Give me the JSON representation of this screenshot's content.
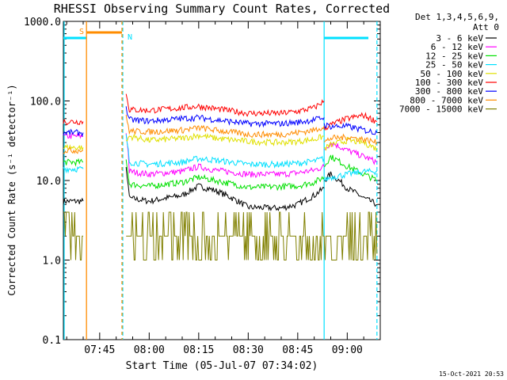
{
  "chart_data": {
    "type": "line",
    "title": "RHESSI Observing Summary Count Rates, Corrected",
    "xlabel": "Start Time (05-Jul-07 07:34:02)",
    "ylabel": "Corrected Count Rate (s⁻¹ detector⁻¹)",
    "y_scale": "log",
    "ylim": [
      0.1,
      1000
    ],
    "xlim": [
      "07:34",
      "09:10"
    ],
    "x_ticks": [
      "07:45",
      "08:00",
      "08:15",
      "08:30",
      "08:45",
      "09:00"
    ],
    "y_ticks": [
      "0.1",
      "1.0",
      "10.0",
      "100.0",
      "1000.0"
    ],
    "legend_header": [
      "Det 1,3,4,5,6,9,",
      "Att 0"
    ],
    "legend_position": "right",
    "footer_date": "15-Oct-2021 20:53",
    "flags": [
      {
        "label": "S",
        "color": "#ff8c00",
        "start": "07:40",
        "end": "07:52"
      },
      {
        "label": "N",
        "color": "#00e0ff",
        "start": "07:52",
        "end": "07:53"
      }
    ],
    "night_boundaries": [
      "07:34",
      "07:52",
      "08:53",
      "09:09"
    ],
    "saa_marker": "07:41",
    "series": [
      {
        "name": "3 - 6 keV",
        "color": "#000000",
        "segments": [
          {
            "x": [
              "07:34",
              "07:40"
            ],
            "y": [
              5.5,
              5.5
            ]
          },
          {
            "x": [
              "07:53",
              "07:54",
              "08:00",
              "08:10",
              "08:15",
              "08:20",
              "08:30",
              "08:40",
              "08:45",
              "08:50",
              "08:53"
            ],
            "y": [
              14,
              6,
              5.5,
              6.5,
              8.5,
              7.5,
              4.6,
              4.5,
              5,
              6.5,
              8
            ]
          },
          {
            "x": [
              "08:53",
              "08:55",
              "09:00",
              "09:05",
              "09:09"
            ],
            "y": [
              10,
              12,
              8,
              6,
              5
            ]
          }
        ]
      },
      {
        "name": "6 - 12 keV",
        "color": "#ff00ff",
        "segments": [
          {
            "x": [
              "07:34",
              "07:40"
            ],
            "y": [
              36,
              36
            ]
          },
          {
            "x": [
              "07:53",
              "07:54",
              "08:00",
              "08:10",
              "08:15",
              "08:20",
              "08:30",
              "08:40",
              "08:45",
              "08:50",
              "08:53"
            ],
            "y": [
              40,
              13,
              12,
              13,
              15,
              13.5,
              12,
              12,
              12.5,
              13.5,
              15
            ]
          },
          {
            "x": [
              "08:53",
              "08:55",
              "09:00",
              "09:05",
              "09:09"
            ],
            "y": [
              24,
              30,
              24,
              20,
              17
            ]
          }
        ]
      },
      {
        "name": "12 - 25 keV",
        "color": "#00e000",
        "segments": [
          {
            "x": [
              "07:34",
              "07:40"
            ],
            "y": [
              17,
              17
            ]
          },
          {
            "x": [
              "07:53",
              "07:54",
              "08:00",
              "08:10",
              "08:15",
              "08:20",
              "08:30",
              "08:40",
              "08:45",
              "08:50",
              "08:53"
            ],
            "y": [
              18,
              9,
              8.5,
              9.5,
              11,
              10,
              8.2,
              8.4,
              8.6,
              9.5,
              11
            ]
          },
          {
            "x": [
              "08:53",
              "08:55",
              "09:00",
              "09:05",
              "09:09"
            ],
            "y": [
              15,
              20,
              15,
              12,
              10
            ]
          }
        ]
      },
      {
        "name": "25 - 50 keV",
        "color": "#00e0ff",
        "segments": [
          {
            "x": [
              "07:34",
              "07:40"
            ],
            "y": [
              14,
              14
            ]
          },
          {
            "x": [
              "07:53",
              "07:54",
              "08:00",
              "08:10",
              "08:15",
              "08:20",
              "08:30",
              "08:40",
              "08:45",
              "08:50",
              "08:53"
            ],
            "y": [
              36,
              17,
              16,
              17,
              19,
              18,
              16,
              16,
              16.5,
              17.5,
              19
            ]
          },
          {
            "x": [
              "08:53",
              "08:55",
              "09:00",
              "09:05",
              "09:09"
            ],
            "y": [
              10,
              11,
              12,
              13,
              13
            ]
          }
        ]
      },
      {
        "name": "50 - 100 keV",
        "color": "#e0e000",
        "segments": [
          {
            "x": [
              "07:34",
              "07:40"
            ],
            "y": [
              26,
              26
            ]
          },
          {
            "x": [
              "07:53",
              "07:54",
              "08:00",
              "08:10",
              "08:15",
              "08:20",
              "08:30",
              "08:40",
              "08:45",
              "08:50",
              "08:53"
            ],
            "y": [
              30,
              36,
              32,
              34,
              37,
              34,
              31,
              30,
              31,
              33,
              36
            ]
          },
          {
            "x": [
              "08:53",
              "08:55",
              "09:00",
              "09:05",
              "09:09"
            ],
            "y": [
              25,
              28,
              32,
              30,
              25
            ]
          }
        ]
      },
      {
        "name": "100 - 300 keV",
        "color": "#ff0000",
        "segments": [
          {
            "x": [
              "07:34",
              "07:40"
            ],
            "y": [
              55,
              55
            ]
          },
          {
            "x": [
              "07:53",
              "07:54",
              "08:00",
              "08:10",
              "08:15",
              "08:20",
              "08:30",
              "08:40",
              "08:45",
              "08:50",
              "08:53"
            ],
            "y": [
              120,
              78,
              76,
              82,
              86,
              80,
              70,
              70,
              74,
              82,
              100
            ]
          },
          {
            "x": [
              "08:53",
              "08:55",
              "09:00",
              "09:05",
              "09:09"
            ],
            "y": [
              45,
              50,
              60,
              66,
              55
            ]
          }
        ]
      },
      {
        "name": "300 - 800 keV",
        "color": "#0000ff",
        "segments": [
          {
            "x": [
              "07:34",
              "07:40"
            ],
            "y": [
              40,
              40
            ]
          },
          {
            "x": [
              "07:53",
              "07:54",
              "08:00",
              "08:10",
              "08:15",
              "08:20",
              "08:30",
              "08:40",
              "08:45",
              "08:50",
              "08:53"
            ],
            "y": [
              80,
              58,
              56,
              60,
              62,
              58,
              52,
              52,
              54,
              58,
              62
            ]
          },
          {
            "x": [
              "08:53",
              "08:55",
              "09:00",
              "09:05",
              "09:09"
            ],
            "y": [
              50,
              48,
              48,
              43,
              40
            ]
          }
        ]
      },
      {
        "name": "800 - 7000 keV",
        "color": "#ff8c00",
        "segments": [
          {
            "x": [
              "07:34",
              "07:40"
            ],
            "y": [
              24,
              24
            ]
          },
          {
            "x": [
              "07:53",
              "07:54",
              "08:00",
              "08:10",
              "08:15",
              "08:20",
              "08:30",
              "08:40",
              "08:45",
              "08:50",
              "08:53"
            ],
            "y": [
              62,
              42,
              41,
              43,
              46,
              43,
              38,
              38,
              40,
              43,
              48
            ]
          },
          {
            "x": [
              "08:53",
              "08:55",
              "09:00",
              "09:05",
              "09:09"
            ],
            "y": [
              30,
              34,
              35,
              33,
              30
            ]
          }
        ]
      },
      {
        "name": "7000 - 15000 keV",
        "color": "#808000",
        "segments": [
          {
            "x": [
              "07:34",
              "07:40"
            ],
            "y": [
              2,
              2
            ]
          },
          {
            "x": [
              "07:53",
              "07:54",
              "08:00",
              "08:10",
              "08:15",
              "08:20",
              "08:30",
              "08:40",
              "08:45",
              "08:50",
              "08:53"
            ],
            "y": [
              3,
              1,
              1,
              1,
              1,
              1,
              1,
              1,
              1,
              1,
              2
            ]
          },
          {
            "x": [
              "08:53",
              "08:55",
              "09:00",
              "09:05",
              "09:09"
            ],
            "y": [
              2,
              3,
              2,
              2,
              1.2
            ]
          }
        ]
      }
    ]
  }
}
